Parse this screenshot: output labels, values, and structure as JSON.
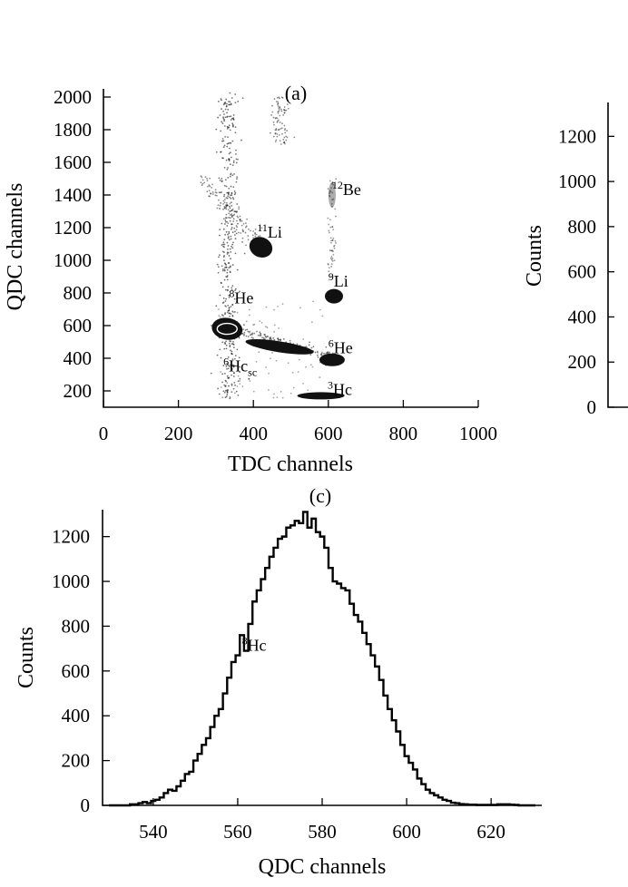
{
  "chart_data": [
    {
      "type": "scatter",
      "panel_label": "(a)",
      "xlabel": "TDC channels",
      "ylabel": "QDC channels",
      "xlim": [
        0,
        1000
      ],
      "ylim": [
        100,
        2050
      ],
      "xticks": [
        "0",
        "200",
        "400",
        "600",
        "800",
        "1000"
      ],
      "yticks": [
        "200",
        "400",
        "600",
        "800",
        "1000",
        "1200",
        "1400",
        "1600",
        "1800",
        "2000"
      ],
      "xtick_values": [
        0,
        200,
        400,
        600,
        800,
        1000
      ],
      "ytick_values": [
        200,
        400,
        600,
        800,
        1000,
        1200,
        1400,
        1600,
        1800,
        2000
      ],
      "clusters": [
        {
          "name": "12Be",
          "x": 610,
          "y": 1400
        },
        {
          "name": "11Li",
          "x": 420,
          "y": 1080
        },
        {
          "name": "9Li",
          "x": 615,
          "y": 780
        },
        {
          "name": "8He",
          "x": 330,
          "y": 580
        },
        {
          "name": "6He",
          "x": 610,
          "y": 390
        },
        {
          "name": "3He",
          "x": 580,
          "y": 170
        }
      ],
      "annotations": [
        {
          "text": "Be",
          "sup": "12",
          "sub": "",
          "x": 610,
          "y": 1400
        },
        {
          "text": "Li",
          "sup": "11",
          "sub": "",
          "x": 410,
          "y": 1140
        },
        {
          "text": "Li",
          "sup": "9",
          "sub": "",
          "x": 600,
          "y": 840
        },
        {
          "text": "He",
          "sup": "8",
          "sub": "",
          "x": 335,
          "y": 735
        },
        {
          "text": "He",
          "sup": "6",
          "sub": "",
          "x": 600,
          "y": 430
        },
        {
          "text": "Hc",
          "sup": "6",
          "sub": "sc",
          "x": 320,
          "y": 320
        },
        {
          "text": "Hc",
          "sup": "3",
          "sub": "",
          "x": 598,
          "y": 175
        }
      ]
    },
    {
      "type": "line",
      "partial": true,
      "ylabel": "Counts",
      "ylim": [
        0,
        1350
      ],
      "yticks": [
        "0",
        "200",
        "400",
        "600",
        "800",
        "1000",
        "1200"
      ],
      "ytick_values": [
        0,
        200,
        400,
        600,
        800,
        1000,
        1200
      ]
    },
    {
      "type": "line",
      "panel_label": "(c)",
      "xlabel": "QDC channels",
      "ylabel": "Counts",
      "xlim": [
        528,
        632
      ],
      "ylim": [
        0,
        1320
      ],
      "xticks": [
        "540",
        "560",
        "580",
        "600",
        "620"
      ],
      "xtick_values": [
        540,
        560,
        580,
        600,
        620
      ],
      "yticks": [
        "0",
        "200",
        "400",
        "600",
        "800",
        "1000",
        "1200"
      ],
      "ytick_values": [
        0,
        200,
        400,
        600,
        800,
        1000,
        1200
      ],
      "series": [
        {
          "x": [
            530,
            531,
            532,
            533,
            534,
            535,
            536,
            537,
            538,
            539,
            540,
            541,
            542,
            543,
            544,
            545,
            546,
            547,
            548,
            549,
            550,
            551,
            552,
            553,
            554,
            555,
            556,
            557,
            558,
            559,
            560,
            561,
            562,
            563,
            564,
            565,
            566,
            567,
            568,
            569,
            570,
            571,
            572,
            573,
            574,
            575,
            576,
            577,
            578,
            579,
            580,
            581,
            582,
            583,
            584,
            585,
            586,
            587,
            588,
            589,
            590,
            591,
            592,
            593,
            594,
            595,
            596,
            597,
            598,
            599,
            600,
            601,
            602,
            603,
            604,
            605,
            606,
            607,
            608,
            609,
            610,
            611,
            612,
            613,
            614,
            615,
            616,
            617,
            618,
            619,
            620,
            621,
            622,
            623,
            624,
            625,
            626,
            627,
            628,
            629,
            630
          ],
          "values": [
            0,
            0,
            0,
            0,
            0,
            5,
            5,
            10,
            15,
            10,
            20,
            25,
            35,
            55,
            70,
            65,
            85,
            110,
            140,
            150,
            200,
            230,
            270,
            300,
            350,
            400,
            430,
            500,
            570,
            640,
            670,
            760,
            690,
            810,
            910,
            960,
            1010,
            1060,
            1110,
            1150,
            1190,
            1200,
            1240,
            1250,
            1270,
            1260,
            1310,
            1240,
            1280,
            1220,
            1200,
            1150,
            1060,
            1000,
            990,
            970,
            960,
            900,
            850,
            820,
            770,
            720,
            670,
            620,
            560,
            490,
            430,
            380,
            330,
            270,
            220,
            190,
            160,
            120,
            95,
            70,
            55,
            45,
            35,
            25,
            20,
            12,
            10,
            6,
            5,
            3,
            3,
            2,
            2,
            2,
            2,
            2,
            5,
            5,
            5,
            3,
            2,
            0,
            0,
            0,
            0
          ]
        }
      ],
      "annotations": [
        {
          "text": "Hc",
          "sup": "8",
          "x": 561,
          "y": 690
        }
      ]
    }
  ]
}
